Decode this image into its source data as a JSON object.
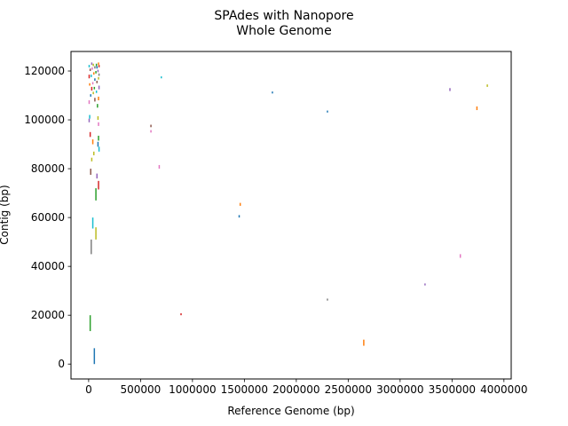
{
  "chart_data": {
    "type": "scatter",
    "title_lines": [
      "SPAdes with Nanopore",
      "Whole Genome"
    ],
    "xlabel": "Reference Genome (bp)",
    "ylabel": "Contig (bp)",
    "xlim": [
      -170000,
      4070000
    ],
    "ylim": [
      -6100,
      128000
    ],
    "xticks": [
      0,
      500000,
      1000000,
      1500000,
      2000000,
      2500000,
      3000000,
      3500000,
      4000000
    ],
    "xtick_labels": [
      "0",
      "500000",
      "1000000",
      "1500000",
      "2000000",
      "2500000",
      "3000000",
      "3500000",
      "4000000"
    ],
    "yticks": [
      0,
      20000,
      40000,
      60000,
      80000,
      100000,
      120000
    ],
    "ytick_labels": [
      "0",
      "20000",
      "40000",
      "60000",
      "80000",
      "100000",
      "120000"
    ],
    "grid": false,
    "legend": "none",
    "palette": [
      "#1f77b4",
      "#ff7f0e",
      "#2ca02c",
      "#d62728",
      "#9467bd",
      "#8c564b",
      "#e377c2",
      "#7f7f7f",
      "#bcbd22",
      "#17becf"
    ],
    "segments": [
      {
        "x": 55000,
        "y1": 0,
        "y2": 6500,
        "color": "#1f77b4"
      },
      {
        "x": 15000,
        "y1": 13500,
        "y2": 20000,
        "color": "#2ca02c"
      },
      {
        "x": 25000,
        "y1": 45000,
        "y2": 51000,
        "color": "#7f7f7f"
      },
      {
        "x": 70000,
        "y1": 51000,
        "y2": 56000,
        "color": "#bcbd22"
      },
      {
        "x": 40000,
        "y1": 55500,
        "y2": 60000,
        "color": "#17becf"
      },
      {
        "x": 70000,
        "y1": 67000,
        "y2": 72000,
        "color": "#2ca02c"
      },
      {
        "x": 95000,
        "y1": 71500,
        "y2": 75000,
        "color": "#d62728"
      },
      {
        "x": 80000,
        "y1": 76000,
        "y2": 78000,
        "color": "#9467bd"
      },
      {
        "x": 20000,
        "y1": 77500,
        "y2": 80000,
        "color": "#8c564b"
      },
      {
        "x": 30000,
        "y1": 83000,
        "y2": 84500,
        "color": "#bcbd22"
      },
      {
        "x": 50000,
        "y1": 85500,
        "y2": 87000,
        "color": "#bcbd22"
      },
      {
        "x": 100000,
        "y1": 87000,
        "y2": 89000,
        "color": "#17becf"
      },
      {
        "x": 90000,
        "y1": 89000,
        "y2": 91000,
        "color": "#1f77b4"
      },
      {
        "x": 40000,
        "y1": 90000,
        "y2": 92000,
        "color": "#ff7f0e"
      },
      {
        "x": 95000,
        "y1": 91500,
        "y2": 93500,
        "color": "#2ca02c"
      },
      {
        "x": 15000,
        "y1": 93000,
        "y2": 95000,
        "color": "#d62728"
      },
      {
        "x": 95000,
        "y1": 97500,
        "y2": 99000,
        "color": "#e377c2"
      },
      {
        "x": 5000,
        "y1": 99000,
        "y2": 100500,
        "color": "#9467bd"
      },
      {
        "x": 10000,
        "y1": 100500,
        "y2": 102000,
        "color": "#17becf"
      },
      {
        "x": 90000,
        "y1": 100000,
        "y2": 101500,
        "color": "#bcbd22"
      },
      {
        "x": 85000,
        "y1": 105000,
        "y2": 106500,
        "color": "#2ca02c"
      },
      {
        "x": 5000,
        "y1": 106500,
        "y2": 108000,
        "color": "#e377c2"
      },
      {
        "x": 60000,
        "y1": 107500,
        "y2": 109000,
        "color": "#8c564b"
      },
      {
        "x": 95000,
        "y1": 108000,
        "y2": 109500,
        "color": "#ff7f0e"
      },
      {
        "x": 20000,
        "y1": 109500,
        "y2": 110500,
        "color": "#1f77b4"
      },
      {
        "x": 45000,
        "y1": 110500,
        "y2": 111500,
        "color": "#bcbd22"
      },
      {
        "x": 75000,
        "y1": 111000,
        "y2": 112000,
        "color": "#17becf"
      },
      {
        "x": 30000,
        "y1": 112000,
        "y2": 113500,
        "color": "#d62728"
      },
      {
        "x": 55000,
        "y1": 112500,
        "y2": 113500,
        "color": "#2ca02c"
      },
      {
        "x": 100000,
        "y1": 112500,
        "y2": 114000,
        "color": "#9467bd"
      },
      {
        "x": 10000,
        "y1": 114000,
        "y2": 115000,
        "color": "#ff7f0e"
      },
      {
        "x": 40000,
        "y1": 114500,
        "y2": 115500,
        "color": "#e377c2"
      },
      {
        "x": 80000,
        "y1": 115000,
        "y2": 116000,
        "color": "#8c564b"
      },
      {
        "x": 60000,
        "y1": 116000,
        "y2": 117000,
        "color": "#1f77b4"
      },
      {
        "x": 95000,
        "y1": 116500,
        "y2": 117500,
        "color": "#bcbd22"
      },
      {
        "x": 5000,
        "y1": 117000,
        "y2": 118500,
        "color": "#d62728"
      },
      {
        "x": 25000,
        "y1": 117500,
        "y2": 118500,
        "color": "#17becf"
      },
      {
        "x": 50000,
        "y1": 118500,
        "y2": 119500,
        "color": "#ff7f0e"
      },
      {
        "x": 70000,
        "y1": 119000,
        "y2": 120000,
        "color": "#2ca02c"
      },
      {
        "x": 90000,
        "y1": 119500,
        "y2": 120500,
        "color": "#9467bd"
      },
      {
        "x": 15000,
        "y1": 120000,
        "y2": 121000,
        "color": "#8c564b"
      },
      {
        "x": 35000,
        "y1": 120500,
        "y2": 121500,
        "color": "#e377c2"
      },
      {
        "x": 60000,
        "y1": 121000,
        "y2": 122000,
        "color": "#7f7f7f"
      },
      {
        "x": 80000,
        "y1": 121000,
        "y2": 122000,
        "color": "#1f77b4"
      },
      {
        "x": 100000,
        "y1": 121500,
        "y2": 122500,
        "color": "#d62728"
      },
      {
        "x": 5000,
        "y1": 121500,
        "y2": 122500,
        "color": "#17becf"
      },
      {
        "x": 45000,
        "y1": 122000,
        "y2": 123000,
        "color": "#bcbd22"
      },
      {
        "x": 75000,
        "y1": 122000,
        "y2": 123000,
        "color": "#2ca02c"
      },
      {
        "x": 95000,
        "y1": 122500,
        "y2": 123500,
        "color": "#ff7f0e"
      },
      {
        "x": 30000,
        "y1": 122500,
        "y2": 123500,
        "color": "#9467bd"
      },
      {
        "x": 100000,
        "y1": 118000,
        "y2": 119000,
        "color": "#7f7f7f"
      },
      {
        "x": 600000,
        "y1": 97000,
        "y2": 98000,
        "color": "#8c564b"
      },
      {
        "x": 600000,
        "y1": 94800,
        "y2": 95800,
        "color": "#e377c2"
      },
      {
        "x": 680000,
        "y1": 80000,
        "y2": 81500,
        "color": "#e377c2"
      },
      {
        "x": 700000,
        "y1": 117000,
        "y2": 117800,
        "color": "#17becf"
      },
      {
        "x": 890000,
        "y1": 20000,
        "y2": 20800,
        "color": "#d62728"
      },
      {
        "x": 1450000,
        "y1": 60000,
        "y2": 61000,
        "color": "#1f77b4"
      },
      {
        "x": 1460000,
        "y1": 64800,
        "y2": 66000,
        "color": "#ff7f0e"
      },
      {
        "x": 1770000,
        "y1": 110800,
        "y2": 111600,
        "color": "#1f77b4"
      },
      {
        "x": 2300000,
        "y1": 26000,
        "y2": 26800,
        "color": "#7f7f7f"
      },
      {
        "x": 2300000,
        "y1": 103000,
        "y2": 103800,
        "color": "#1f77b4"
      },
      {
        "x": 2650000,
        "y1": 7500,
        "y2": 10000,
        "color": "#ff7f0e"
      },
      {
        "x": 3240000,
        "y1": 32200,
        "y2": 33000,
        "color": "#9467bd"
      },
      {
        "x": 3480000,
        "y1": 111800,
        "y2": 113000,
        "color": "#9467bd"
      },
      {
        "x": 3580000,
        "y1": 43500,
        "y2": 45000,
        "color": "#e377c2"
      },
      {
        "x": 3740000,
        "y1": 104000,
        "y2": 105500,
        "color": "#ff7f0e"
      },
      {
        "x": 3840000,
        "y1": 113500,
        "y2": 114500,
        "color": "#bcbd22"
      }
    ]
  }
}
